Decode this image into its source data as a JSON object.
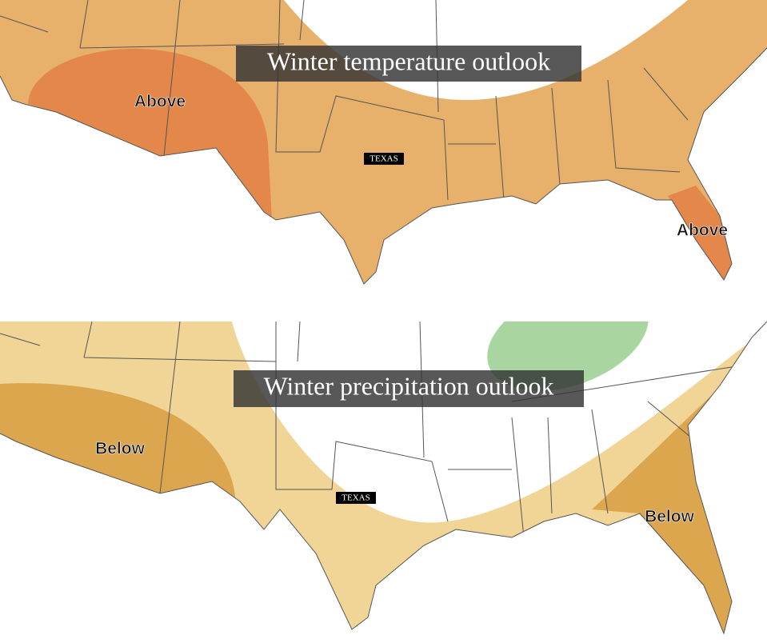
{
  "panels": [
    {
      "title": "Winter temperature outlook",
      "state_label": "TEXAS",
      "labels": [
        "Above",
        "Above"
      ]
    },
    {
      "title": "Winter precipitation outlook",
      "state_label": "TEXAS",
      "labels": [
        "Below",
        "Below"
      ]
    }
  ]
}
